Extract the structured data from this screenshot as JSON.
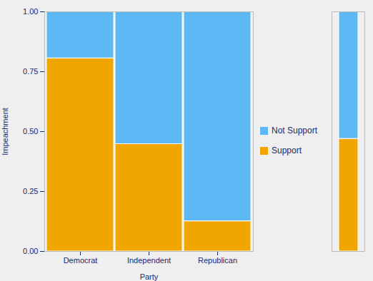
{
  "chart_data": [
    {
      "type": "bar",
      "stacked": true,
      "x_label": "Party",
      "y_label": "Impeachment",
      "categories": [
        "Democrat",
        "Independent",
        "Republican"
      ],
      "series": [
        {
          "name": "Support",
          "color": "#F0A500",
          "values": [
            0.806,
            0.448,
            0.126
          ]
        },
        {
          "name": "Not Support",
          "color": "#5BB8F5",
          "values": [
            0.194,
            0.552,
            0.874
          ]
        }
      ],
      "ylim": [
        0,
        1.0
      ],
      "yticks": [
        {
          "value": 0,
          "label": "0.00"
        },
        {
          "value": 0.25,
          "label": "0.25"
        },
        {
          "value": 0.5,
          "label": "0.50"
        },
        {
          "value": 0.75,
          "label": "0.75"
        },
        {
          "value": 1.0,
          "label": "1.00"
        }
      ],
      "grid": false,
      "legend": "right"
    },
    {
      "type": "bar",
      "stacked": true,
      "categories": [
        null
      ],
      "series": [
        {
          "name": "Support",
          "color": "#F0A500",
          "values": [
            0.47
          ]
        },
        {
          "name": "Not Support",
          "color": "#5BB8F5",
          "values": [
            0.53
          ]
        }
      ],
      "ylim": [
        0,
        1.0
      ],
      "grid": false,
      "tick_labels": false
    }
  ]
}
